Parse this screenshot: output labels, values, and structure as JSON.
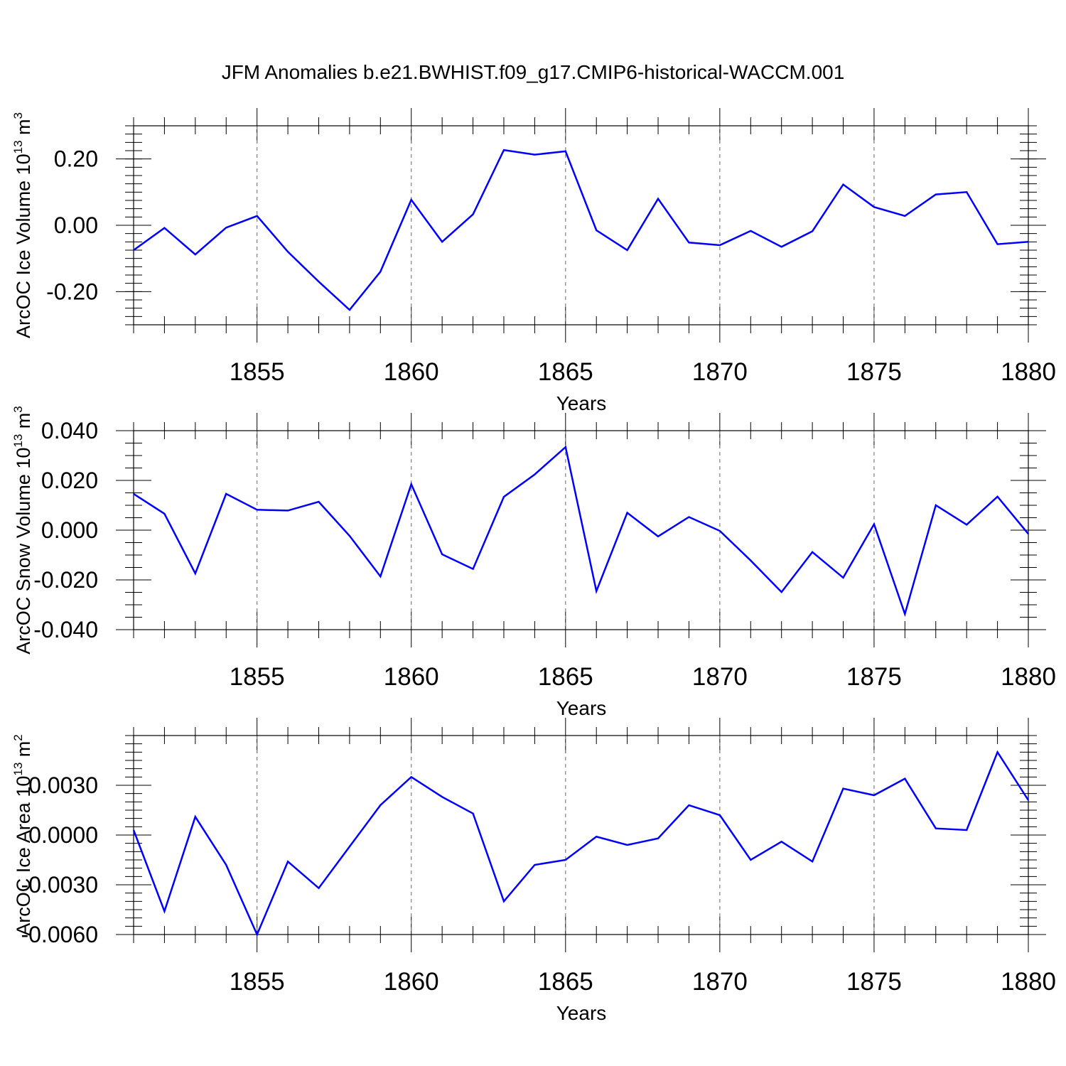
{
  "title": "JFM Anomalies b.e21.BWHIST.f09_g17.CMIP6-historical-WACCM.001",
  "line_color": "#0000ff",
  "chart_data": [
    {
      "type": "line",
      "ylabel_main": "ArcOC Ice Volume 10",
      "ylabel_exp": "13",
      "ylabel_unit": "m",
      "ylabel_unit_exp": "3",
      "xlabel": "Years",
      "xlim": [
        1851,
        1880
      ],
      "ylim": [
        -0.3,
        0.3
      ],
      "xticks": [
        "1855",
        "1860",
        "1865",
        "1870",
        "1875",
        "1880"
      ],
      "yticks": [
        "0.20",
        "0.00",
        "-0.20"
      ],
      "ytick_values": [
        0.2,
        0.0,
        -0.2
      ],
      "x": [
        1851,
        1852,
        1853,
        1854,
        1855,
        1856,
        1857,
        1858,
        1859,
        1860,
        1861,
        1862,
        1863,
        1864,
        1865,
        1866,
        1867,
        1868,
        1869,
        1870,
        1871,
        1872,
        1873,
        1874,
        1875,
        1876,
        1877,
        1878,
        1879,
        1880
      ],
      "values": [
        -0.075,
        -0.008,
        -0.088,
        -0.007,
        0.028,
        -0.08,
        -0.17,
        -0.255,
        -0.14,
        0.077,
        -0.05,
        0.033,
        0.227,
        0.213,
        0.223,
        -0.015,
        -0.075,
        0.08,
        -0.052,
        -0.06,
        -0.017,
        -0.065,
        -0.018,
        0.123,
        0.055,
        0.028,
        0.093,
        0.1,
        -0.057,
        -0.05
      ]
    },
    {
      "type": "line",
      "ylabel_main": "ArcOC Snow Volume 10",
      "ylabel_exp": "13",
      "ylabel_unit": "m",
      "ylabel_unit_exp": "3",
      "xlabel": "Years",
      "xlim": [
        1851,
        1880
      ],
      "ylim": [
        -0.04,
        0.04
      ],
      "xticks": [
        "1855",
        "1860",
        "1865",
        "1870",
        "1875",
        "1880"
      ],
      "yticks": [
        "0.040",
        "0.020",
        "0.000",
        "-0.020",
        "-0.040"
      ],
      "ytick_values": [
        0.04,
        0.02,
        0.0,
        -0.02,
        -0.04
      ],
      "x": [
        1851,
        1852,
        1853,
        1854,
        1855,
        1856,
        1857,
        1858,
        1859,
        1860,
        1861,
        1862,
        1863,
        1864,
        1865,
        1866,
        1867,
        1868,
        1869,
        1870,
        1871,
        1872,
        1873,
        1874,
        1875,
        1876,
        1877,
        1878,
        1879,
        1880
      ],
      "values": [
        0.0146,
        0.0066,
        -0.0174,
        0.0146,
        0.0082,
        0.0079,
        0.0114,
        -0.0023,
        -0.0186,
        0.0185,
        -0.0097,
        -0.0156,
        0.0134,
        0.0224,
        0.0334,
        -0.0245,
        0.007,
        -0.0025,
        0.0053,
        -0.0003,
        -0.0122,
        -0.0249,
        -0.0088,
        -0.0191,
        0.0024,
        -0.0337,
        0.01,
        0.0022,
        0.0135,
        -0.0015
      ]
    },
    {
      "type": "line",
      "ylabel_main": "ArcOC Ice Area 10",
      "ylabel_exp": "13",
      "ylabel_unit": "m",
      "ylabel_unit_exp": "2",
      "xlabel": "Years",
      "xlim": [
        1851,
        1880
      ],
      "ylim": [
        -0.006,
        0.006
      ],
      "xticks": [
        "1855",
        "1860",
        "1865",
        "1870",
        "1875",
        "1880"
      ],
      "yticks": [
        "0.0030",
        "0.0000",
        "-0.0030",
        "-0.0060"
      ],
      "ytick_values": [
        0.003,
        0.0,
        -0.003,
        -0.006
      ],
      "x": [
        1851,
        1852,
        1853,
        1854,
        1855,
        1856,
        1857,
        1858,
        1859,
        1860,
        1861,
        1862,
        1863,
        1864,
        1865,
        1866,
        1867,
        1868,
        1869,
        1870,
        1871,
        1872,
        1873,
        1874,
        1875,
        1876,
        1877,
        1878,
        1879,
        1880
      ],
      "values": [
        0.0003,
        -0.0046,
        0.0011,
        -0.0018,
        -0.006,
        -0.0016,
        -0.0032,
        -0.0007,
        0.0018,
        0.0035,
        0.0023,
        0.0013,
        -0.004,
        -0.0018,
        -0.0015,
        -0.0001,
        -0.0006,
        -0.0002,
        0.0018,
        0.0012,
        -0.0015,
        -0.0004,
        -0.0016,
        0.0028,
        0.0024,
        0.0034,
        0.0004,
        0.0003,
        0.005,
        0.0021
      ]
    }
  ]
}
